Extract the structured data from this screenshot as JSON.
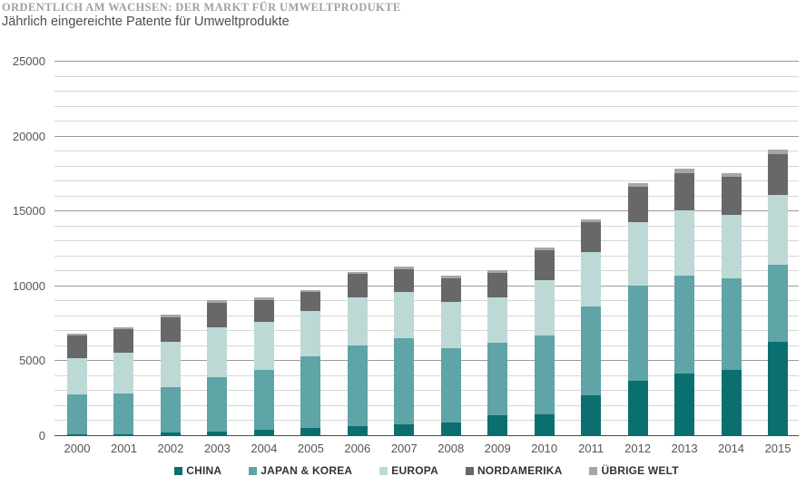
{
  "header": {
    "eyebrow": "ORDENTLICH AM WACHSEN: DER MARKT FÜR UMWELTPRODUKTE",
    "subtitle": "Jährlich eingereichte Patente für Umweltprodukte"
  },
  "chart_data": {
    "type": "bar",
    "stacked": true,
    "title": "Jährlich eingereichte Patente für Umweltprodukte",
    "xlabel": "",
    "ylabel": "",
    "ylim": [
      0,
      25000
    ],
    "ytick_step": 5000,
    "minor_grid_step": 1000,
    "grid": true,
    "legend_position": "bottom",
    "yticks": [
      "0",
      "5000",
      "10000",
      "15000",
      "20000",
      "25000"
    ],
    "categories": [
      "2000",
      "2001",
      "2002",
      "2003",
      "2004",
      "2005",
      "2006",
      "2007",
      "2008",
      "2009",
      "2010",
      "2011",
      "2012",
      "2013",
      "2014",
      "2015"
    ],
    "series": [
      {
        "name": "CHINA",
        "color": "#0b6f6f",
        "values": [
          100,
          150,
          250,
          300,
          450,
          550,
          650,
          800,
          900,
          1400,
          1450,
          2750,
          3700,
          4200,
          4400,
          6300
        ]
      },
      {
        "name": "JAPAN & KOREA",
        "color": "#5fa4a6",
        "values": [
          2690,
          2680,
          3040,
          3640,
          3950,
          4800,
          5410,
          5730,
          4960,
          4820,
          5280,
          5900,
          6360,
          6510,
          6160,
          5150
        ]
      },
      {
        "name": "EUROPA",
        "color": "#bdd9d6",
        "values": [
          2400,
          2750,
          3030,
          3350,
          3240,
          3000,
          3190,
          3120,
          3090,
          3070,
          3680,
          3630,
          4240,
          4360,
          4190,
          4670
        ]
      },
      {
        "name": "NORDAMERIKA",
        "color": "#686868",
        "values": [
          1540,
          1590,
          1630,
          1630,
          1460,
          1260,
          1570,
          1470,
          1610,
          1630,
          2010,
          1990,
          2370,
          2470,
          2580,
          2700
        ]
      },
      {
        "name": "ÜBRIGE WELT",
        "color": "#a6a6a6",
        "values": [
          100,
          100,
          150,
          150,
          150,
          150,
          150,
          200,
          150,
          150,
          200,
          200,
          200,
          300,
          200,
          300
        ]
      }
    ],
    "totals": [
      6830,
      7270,
      8100,
      9070,
      9250,
      9760,
      10970,
      11320,
      10710,
      11070,
      12620,
      14470,
      16870,
      17840,
      17530,
      19120
    ]
  }
}
